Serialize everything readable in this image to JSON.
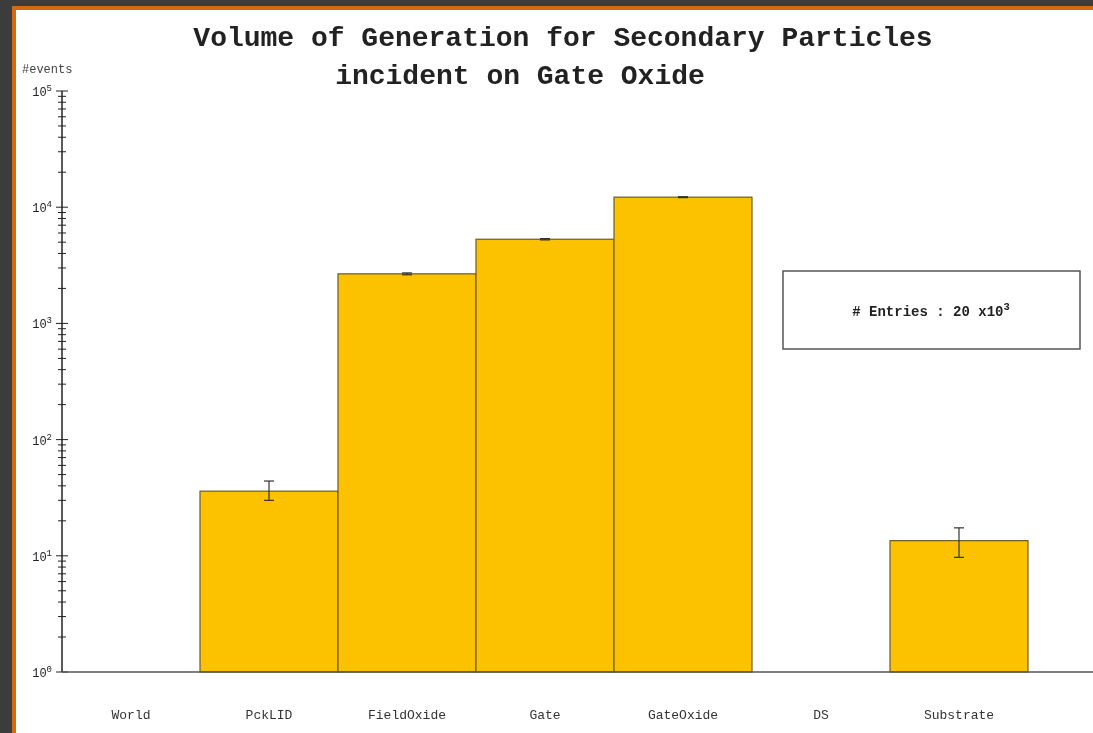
{
  "chart_data": {
    "type": "bar",
    "title": "Volume of Generation for Secondary Particles\nincident on Gate Oxide",
    "ylabel": "#events",
    "categories": [
      "World",
      "PckLID",
      "FieldOxide",
      "Gate",
      "GateOxide",
      "DS",
      "Substrate"
    ],
    "values": [
      null,
      36,
      2670,
      5300,
      12200,
      null,
      13.5
    ],
    "errors": [
      null,
      [
        30,
        44
      ],
      50,
      70,
      110,
      null,
      [
        9.7,
        17.4
      ]
    ],
    "color": "#fcc200",
    "log": true,
    "ylim": [
      1,
      100000
    ],
    "yticks": [
      {
        "value": 1,
        "label": "10$^{0}$"
      },
      {
        "value": 2,
        "label": null
      },
      {
        "value": 3,
        "label": null
      },
      {
        "value": 4,
        "label": null
      },
      {
        "value": 5,
        "label": null
      },
      {
        "value": 6,
        "label": null
      },
      {
        "value": 7,
        "label": null
      },
      {
        "value": 8,
        "label": null
      },
      {
        "value": 9,
        "label": null
      },
      {
        "value": 10,
        "label": "10$^{1}$"
      },
      {
        "value": 20,
        "label": null
      },
      {
        "value": 30,
        "label": null
      },
      {
        "value": 40,
        "label": null
      },
      {
        "value": 50,
        "label": null
      },
      {
        "value": 60,
        "label": null
      },
      {
        "value": 70,
        "label": null
      },
      {
        "value": 80,
        "label": null
      },
      {
        "value": 90,
        "label": null
      },
      {
        "value": 100,
        "label": "10$^{2}$"
      },
      {
        "value": 200,
        "label": null
      },
      {
        "value": 300,
        "label": null
      },
      {
        "value": 400,
        "label": null
      },
      {
        "value": 500,
        "label": null
      },
      {
        "value": 600,
        "label": null
      },
      {
        "value": 700,
        "label": null
      },
      {
        "value": 800,
        "label": null
      },
      {
        "value": 900,
        "label": null
      },
      {
        "value": 1000,
        "label": "10$^{3}$"
      },
      {
        "value": 2000,
        "label": null
      },
      {
        "value": 3000,
        "label": null
      },
      {
        "value": 4000,
        "label": null
      },
      {
        "value": 5000,
        "label": null
      },
      {
        "value": 6000,
        "label": null
      },
      {
        "value": 7000,
        "label": null
      },
      {
        "value": 8000,
        "label": null
      },
      {
        "value": 9000,
        "label": null
      },
      {
        "value": 10000,
        "label": "10$^{4}$"
      },
      {
        "value": 20000,
        "label": null
      },
      {
        "value": 30000,
        "label": null
      },
      {
        "value": 40000,
        "label": null
      },
      {
        "value": 50000,
        "label": null
      },
      {
        "value": 60000,
        "label": null
      },
      {
        "value": 70000,
        "label": null
      },
      {
        "value": 80000,
        "label": null
      },
      {
        "value": 90000,
        "label": null
      },
      {
        "value": 100000,
        "label": "10$^{5}$"
      }
    ],
    "annotations": [
      "# Entries : 20 x10$^{3}$"
    ]
  }
}
